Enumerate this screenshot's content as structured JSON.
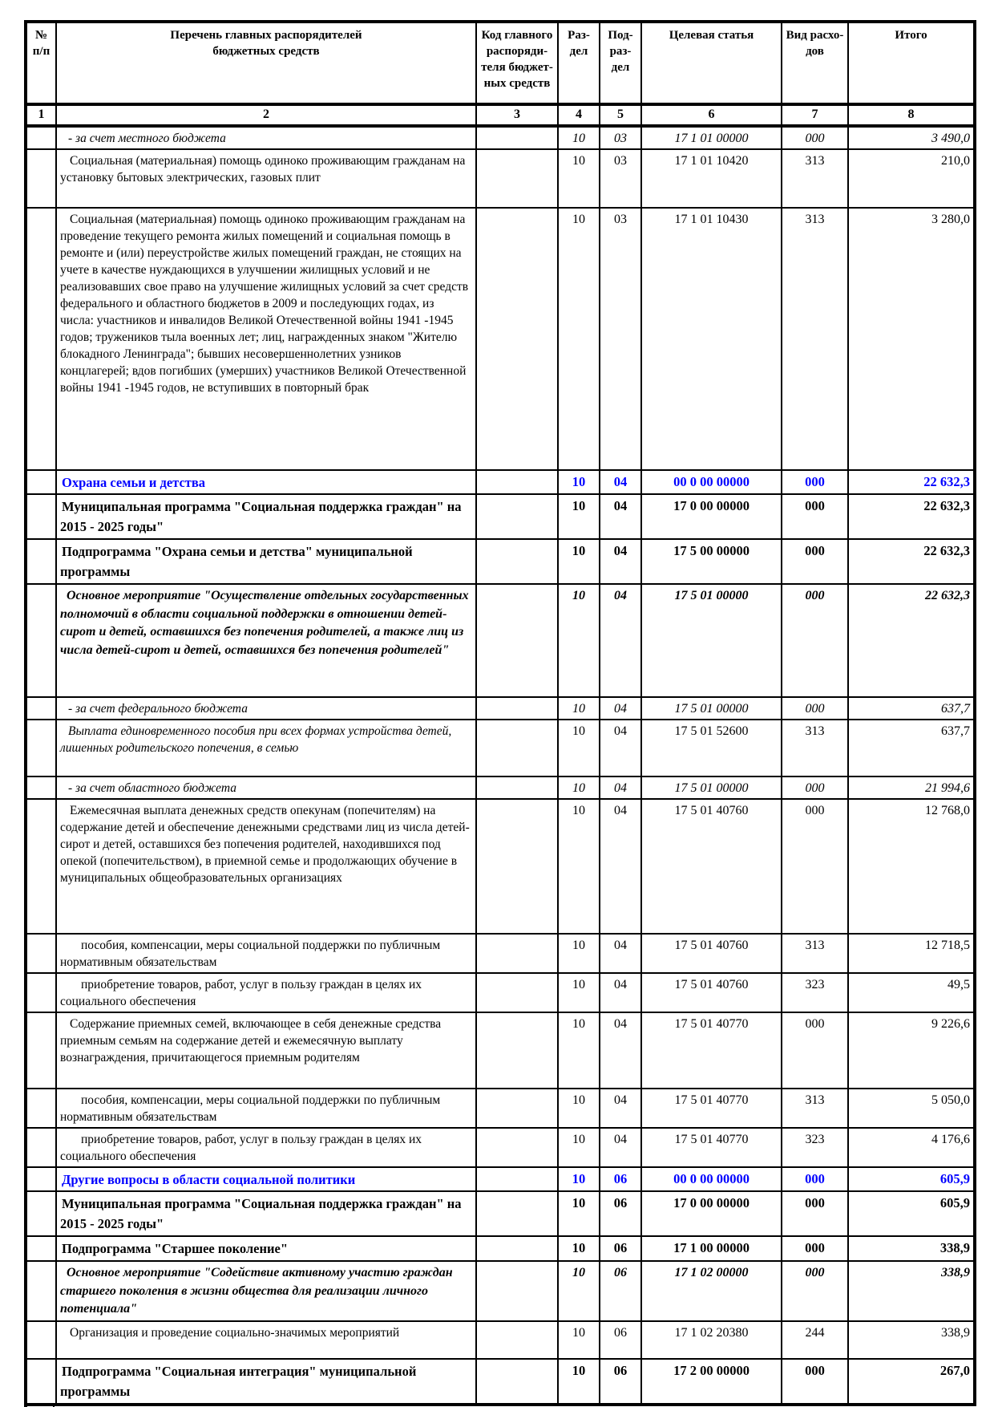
{
  "accent_blue": "#0000FF",
  "table": {
    "header": {
      "col_no": "№\nп/п",
      "col_name": "Перечень главных распорядителей\nбюджетных средств",
      "col_code": "Код главного\nраспоряди-\nтеля бюджет-\nных средств",
      "col_section": "Раз-\nдел",
      "col_subsection": "Под-\nраз-\nдел",
      "col_target": "Целевая статья",
      "col_expense": "Вид расхо-\nдов",
      "col_total": "Итого"
    },
    "column_numbers": [
      "1",
      "2",
      "3",
      "4",
      "5",
      "6",
      "7",
      "8"
    ],
    "rows": [
      {
        "no": "",
        "name": "- за счет местного бюджета",
        "code": "",
        "razdel": "10",
        "podrazdel": "03",
        "target": "17 1 01 00000",
        "vid": "000",
        "total": "3 490,0",
        "variant": "italic"
      },
      {
        "no": "",
        "name": "Социальная (материальная) помощь одиноко проживающим гражданам на установку бытовых электрических, газовых плит",
        "code": "",
        "razdel": "10",
        "podrazdel": "03",
        "target": "17 1 01 10420",
        "vid": "313",
        "total": "210,0",
        "variant": "regular"
      },
      {
        "no": "",
        "name": "Социальная (материальная) помощь одиноко проживающим гражданам на проведение текущего ремонта жилых помещений и социальная помощь в ремонте и (или) переустройстве жилых помещений граждан, не стоящих на учете в качестве нуждающихся в улучшении жилищных условий и не реализовавших свое право на улучшение жилищных условий за счет средств федерального и областного бюджетов в 2009 и последующих годах, из числа: участников и инвалидов Великой Отечественной войны 1941 -1945 годов; тружеников тыла военных лет; лиц, награжденных знаком \"Жителю блокадного Ленинграда\"; бывших несовершеннолетних узников концлагерей; вдов погибших (умерших) участников Великой Отечественной войны 1941 -1945 годов, не вступивших в повторный брак",
        "code": "",
        "razdel": "10",
        "podrazdel": "03",
        "target": "17 1 01 10430",
        "vid": "313",
        "total": "3 280,0",
        "variant": "regular"
      },
      {
        "no": "",
        "name": "Охрана семьи и детства",
        "code": "",
        "razdel": "10",
        "podrazdel": "04",
        "target": "00 0 00 00000",
        "vid": "000",
        "total": "22 632,3",
        "variant": "blue"
      },
      {
        "no": "",
        "name": "Муниципальная программа \"Социальная поддержка граждан\" на 2015 - 2025 годы\"",
        "code": "",
        "razdel": "10",
        "podrazdel": "04",
        "target": "17 0 00 00000",
        "vid": "000",
        "total": "22 632,3",
        "variant": "bold"
      },
      {
        "no": "",
        "name": "Подпрограмма \"Охрана семьи и детства\" муниципальной программы",
        "code": "",
        "razdel": "10",
        "podrazdel": "04",
        "target": "17 5 00 00000",
        "vid": "000",
        "total": "22 632,3",
        "variant": "bold"
      },
      {
        "no": "",
        "name": "Основное мероприятие \"Осуществление отдельных государственных полномочий в области социальной поддержки в отношении детей-сирот и детей, оставшихся без попечения родителей, а также лиц из числа детей-сирот и детей, оставшихся без попечения родителей\"",
        "code": "",
        "razdel": "10",
        "podrazdel": "04",
        "target": "17 5 01 00000",
        "vid": "000",
        "total": "22 632,3",
        "variant": "bold-italic"
      },
      {
        "no": "",
        "name": "- за счет федерального бюджета",
        "code": "",
        "razdel": "10",
        "podrazdel": "04",
        "target": "17 5 01 00000",
        "vid": "000",
        "total": "637,7",
        "variant": "italic"
      },
      {
        "no": "",
        "name": "Выплата единовременного пособия при всех формах устройства детей, лишенных родительского попечения, в семью",
        "code": "",
        "razdel": "10",
        "podrazdel": "04",
        "target": "17 5 01 52600",
        "vid": "313",
        "total": "637,7",
        "variant": "italic-text"
      },
      {
        "no": "",
        "name": "- за счет областного бюджета",
        "code": "",
        "razdel": "10",
        "podrazdel": "04",
        "target": "17 5 01 00000",
        "vid": "000",
        "total": "21 994,6",
        "variant": "italic"
      },
      {
        "no": "",
        "name": "Ежемесячная выплата денежных средств опекунам (попечителям) на содержание детей и обеспечение денежными средствами лиц из числа детей-сирот и детей, оставшихся без попечения родителей, находившихся под опекой (попечительством), в приемной семье и продолжающих обучение в муниципальных общеобразовательных организациях",
        "code": "",
        "razdel": "10",
        "podrazdel": "04",
        "target": "17 5 01 40760",
        "vid": "000",
        "total": "12 768,0",
        "variant": "regular"
      },
      {
        "no": "",
        "name": "пособия, компенсации, меры социальной поддержки по публичным нормативным обязательствам",
        "code": "",
        "razdel": "10",
        "podrazdel": "04",
        "target": "17 5 01 40760",
        "vid": "313",
        "total": "12 718,5",
        "variant": "sub"
      },
      {
        "no": "",
        "name": "приобретение товаров, работ, услуг в пользу граждан в целях их социального обеспечения",
        "code": "",
        "razdel": "10",
        "podrazdel": "04",
        "target": "17 5 01 40760",
        "vid": "323",
        "total": "49,5",
        "variant": "sub"
      },
      {
        "no": "",
        "name": "Содержание приемных семей, включающее в себя денежные средства приемным семьям на содержание детей и ежемесячную выплату вознаграждения, причитающегося приемным родителям",
        "code": "",
        "razdel": "10",
        "podrazdel": "04",
        "target": "17 5 01 40770",
        "vid": "000",
        "total": "9 226,6",
        "variant": "regular"
      },
      {
        "no": "",
        "name": "пособия, компенсации, меры социальной поддержки по публичным нормативным обязательствам",
        "code": "",
        "razdel": "10",
        "podrazdel": "04",
        "target": "17 5 01 40770",
        "vid": "313",
        "total": "5 050,0",
        "variant": "sub"
      },
      {
        "no": "",
        "name": "приобретение товаров, работ, услуг в пользу граждан в целях их социального обеспечения",
        "code": "",
        "razdel": "10",
        "podrazdel": "04",
        "target": "17 5 01 40770",
        "vid": "323",
        "total": "4 176,6",
        "variant": "sub"
      },
      {
        "no": "",
        "name": "Другие вопросы в области социальной политики",
        "code": "",
        "razdel": "10",
        "podrazdel": "06",
        "target": "00 0 00 00000",
        "vid": "000",
        "total": "605,9",
        "variant": "blue"
      },
      {
        "no": "",
        "name": "Муниципальная программа \"Социальная поддержка граждан\" на 2015 - 2025 годы\"",
        "code": "",
        "razdel": "10",
        "podrazdel": "06",
        "target": "17 0 00 00000",
        "vid": "000",
        "total": "605,9",
        "variant": "bold"
      },
      {
        "no": "",
        "name": "Подпрограмма \"Старшее поколение\"",
        "code": "",
        "razdel": "10",
        "podrazdel": "06",
        "target": "17 1 00 00000",
        "vid": "000",
        "total": "338,9",
        "variant": "bold"
      },
      {
        "no": "",
        "name": "Основное мероприятие \"Содействие активному участию граждан старшего поколения в жизни общества для реализации личного потенциала\"",
        "code": "",
        "razdel": "10",
        "podrazdel": "06",
        "target": "17 1 02 00000",
        "vid": "000",
        "total": "338,9",
        "variant": "bold-italic"
      },
      {
        "no": "",
        "name": "Организация и проведение социально-значимых мероприятий",
        "code": "",
        "razdel": "10",
        "podrazdel": "06",
        "target": "17 1 02 20380",
        "vid": "244",
        "total": "338,9",
        "variant": "regular"
      },
      {
        "no": "",
        "name": "Подпрограмма \"Социальная интеграция\" муниципальной программы",
        "code": "",
        "razdel": "10",
        "podrazdel": "06",
        "target": "17 2 00 00000",
        "vid": "000",
        "total": "267,0",
        "variant": "bold"
      }
    ]
  }
}
